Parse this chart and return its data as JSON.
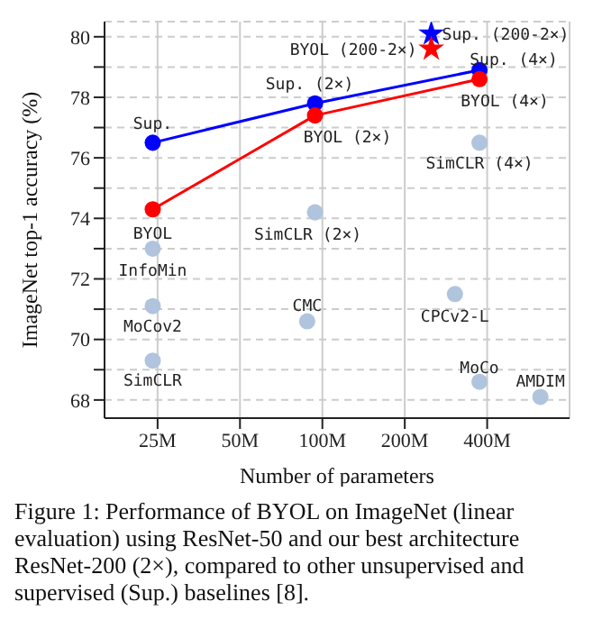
{
  "chart_data": {
    "type": "scatter",
    "xlabel": "Number of parameters",
    "ylabel": "ImageNet top-1 accuracy (%)",
    "log": "x",
    "grid": true,
    "xlim": [
      16,
      800
    ],
    "xticks": [
      {
        "value": 25,
        "label": "25M"
      },
      {
        "value": 50,
        "label": "50M"
      },
      {
        "value": 100,
        "label": "100M"
      },
      {
        "value": 200,
        "label": "200M"
      },
      {
        "value": 400,
        "label": "400M"
      }
    ],
    "ylim": [
      67.4,
      80.5
    ],
    "yticks": [
      68,
      {
        "value": 69,
        "label": null
      },
      70,
      {
        "value": 71,
        "label": null
      },
      72,
      {
        "value": 73,
        "label": null
      },
      74,
      {
        "value": 75,
        "label": null
      },
      76,
      {
        "value": 77,
        "label": null
      },
      78,
      {
        "value": 79,
        "label": null
      },
      80
    ],
    "series": [
      {
        "type": "line",
        "color": "#0000ff",
        "marker": "circle",
        "x": [
          24,
          94,
          375
        ],
        "values": [
          76.5,
          77.8,
          78.9
        ]
      },
      {
        "type": "line",
        "color": "#ff0000",
        "marker": "circle",
        "x": [
          24,
          94,
          375
        ],
        "values": [
          74.3,
          77.4,
          78.6
        ]
      },
      {
        "type": "scatter",
        "color": "#0000ff",
        "marker": "star",
        "x": [
          250
        ],
        "values": [
          80.1
        ]
      },
      {
        "type": "scatter",
        "color": "#ff0000",
        "marker": "star",
        "x": [
          250
        ],
        "values": [
          79.6
        ]
      },
      {
        "type": "scatter",
        "color": "#b0c4de",
        "marker": "circle",
        "x": [
          375,
          94,
          24,
          24,
          24,
          88,
          305,
          375,
          626
        ],
        "values": [
          76.5,
          74.2,
          73.0,
          71.1,
          69.3,
          70.6,
          71.5,
          68.6,
          68.1
        ]
      }
    ],
    "annotations": [
      {
        "text": "Sup.",
        "x": 24,
        "y": 76.5
      },
      {
        "text": "Sup. (2×)",
        "x": 94,
        "y": 77.8
      },
      {
        "text": "Sup. (4×)",
        "x": 375,
        "y": 78.9
      },
      {
        "text": "Sup. (200-2×)",
        "x": 250,
        "y": 80.1
      },
      {
        "text": "BYOL (200-2×)",
        "x": 250,
        "y": 79.6
      },
      {
        "text": "BYOL (2×)",
        "x": 94,
        "y": 77.4
      },
      {
        "text": "BYOL (4×)",
        "x": 375,
        "y": 78.6
      },
      {
        "text": "BYOL",
        "x": 24,
        "y": 74.3
      },
      {
        "text": "SimCLR (4×)",
        "x": 375,
        "y": 76.5
      },
      {
        "text": "SimCLR (2×)",
        "x": 94,
        "y": 74.2
      },
      {
        "text": "InfoMin",
        "x": 24,
        "y": 73.0
      },
      {
        "text": "MoCov2",
        "x": 24,
        "y": 71.1
      },
      {
        "text": "SimCLR",
        "x": 24,
        "y": 69.3
      },
      {
        "text": "CMC",
        "x": 88,
        "y": 70.6
      },
      {
        "text": "CPCv2-L",
        "x": 305,
        "y": 71.5
      },
      {
        "text": "MoCo",
        "x": 375,
        "y": 68.6
      },
      {
        "text": "AMDIM",
        "x": 626,
        "y": 68.1
      },
      "Figure 1: Performance of BYOL on ImageNet (linear evaluation) using ResNet-50 and our best architecture ResNet-200 (2×), compared to other unsupervised and supervised (Sup.) baselines [8]."
    ]
  }
}
